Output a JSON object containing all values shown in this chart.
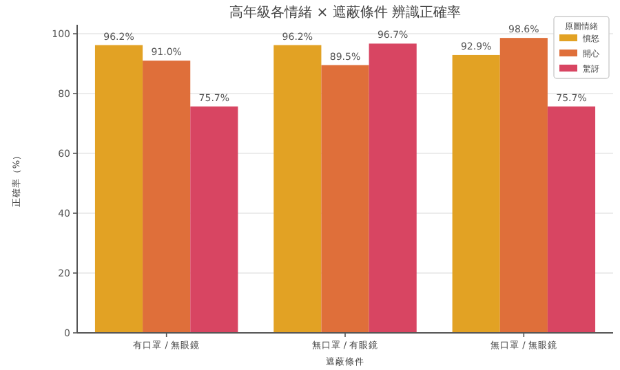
{
  "chart_data": {
    "type": "bar",
    "title": "高年級各情緒 × 遮蔽條件 辨識正確率",
    "xlabel": "遮蔽條件",
    "ylabel": "正確率（%）",
    "legend_title": "原圖情緒",
    "categories": [
      "有口罩 / 無眼鏡",
      "無口罩 / 有眼鏡",
      "無口罩 / 無眼鏡"
    ],
    "series": [
      {
        "name": "憤怒",
        "color": "#e2a224",
        "values": [
          96.2,
          96.2,
          92.9
        ],
        "value_labels": [
          "96.2%",
          "96.2%",
          "92.9%"
        ]
      },
      {
        "name": "開心",
        "color": "#df6f3a",
        "values": [
          91.0,
          89.5,
          98.6
        ],
        "value_labels": [
          "91.0%",
          "89.5%",
          "98.6%"
        ]
      },
      {
        "name": "驚訝",
        "color": "#d84562",
        "values": [
          75.7,
          96.7,
          75.7
        ],
        "value_labels": [
          "75.7%",
          "96.7%",
          "75.7%"
        ]
      }
    ],
    "ylim": [
      0,
      103
    ],
    "yticks": [
      0,
      20,
      40,
      60,
      80,
      100
    ],
    "grid": "y",
    "legend": "top right"
  }
}
